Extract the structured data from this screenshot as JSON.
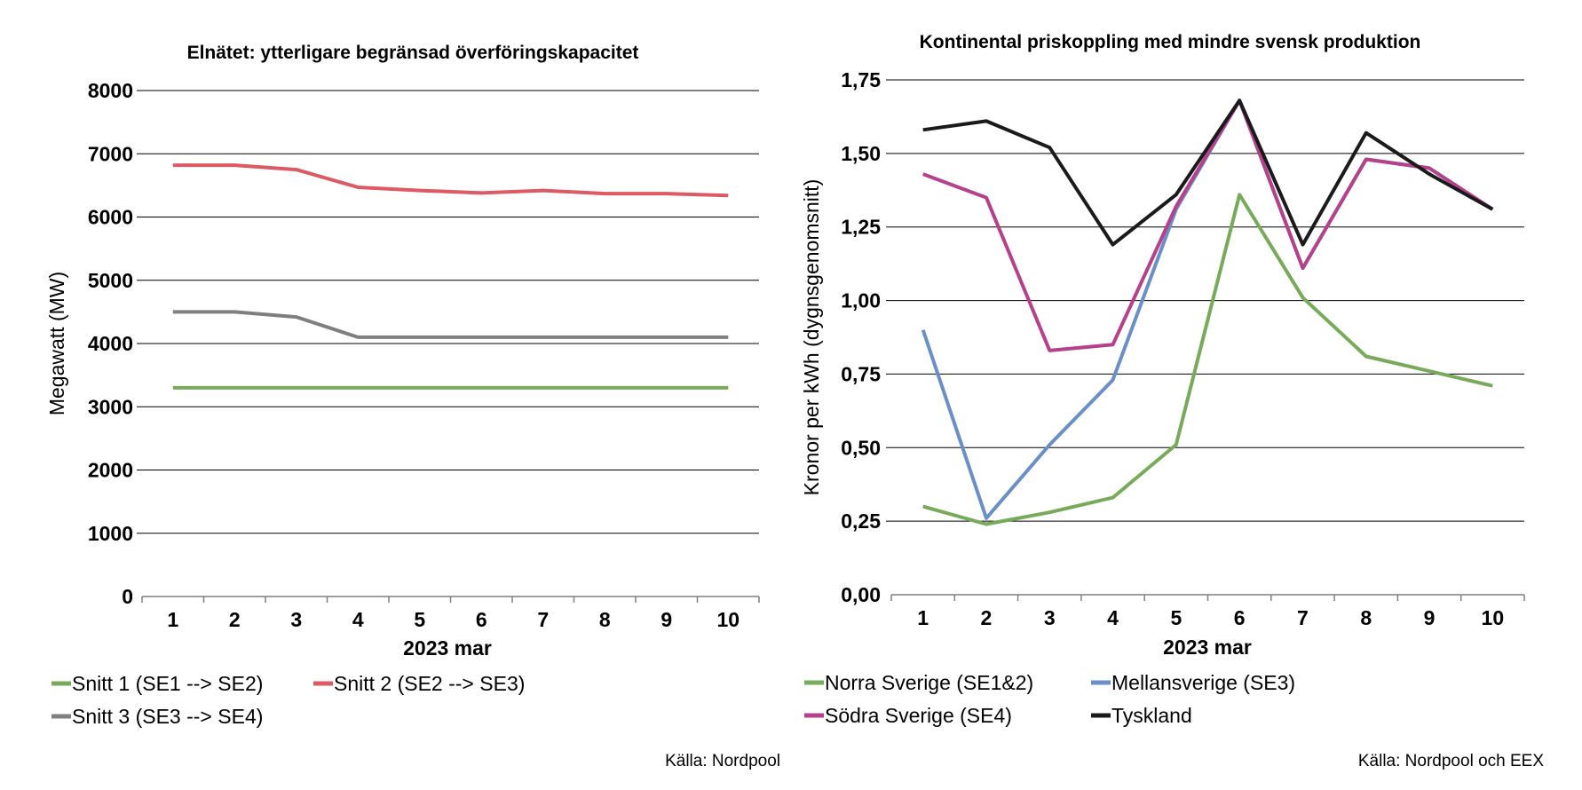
{
  "chart_data": [
    {
      "type": "line",
      "title": "Elnätet: ytterligare begränsad överföringskapacitet",
      "xlabel": "2023 mar",
      "ylabel": "Megawatt (MW)",
      "ylim": [
        0,
        8000
      ],
      "yticks": [
        "0",
        "1000",
        "2000",
        "3000",
        "4000",
        "5000",
        "6000",
        "7000",
        "8000"
      ],
      "x": [
        "1",
        "2",
        "3",
        "4",
        "5",
        "6",
        "7",
        "8",
        "9",
        "10"
      ],
      "grid": true,
      "legend_position": "bottom",
      "series": [
        {
          "name": "Snitt 1 (SE1 --> SE2)",
          "color": "#77ab59",
          "values": [
            3300,
            3300,
            3300,
            3300,
            3300,
            3300,
            3300,
            3300,
            3300,
            3300
          ]
        },
        {
          "name": "Snitt 2 (SE2 --> SE3)",
          "color": "#dd5a64",
          "values": [
            6820,
            6820,
            6750,
            6470,
            6420,
            6380,
            6420,
            6370,
            6370,
            6340
          ]
        },
        {
          "name": "Snitt 3 (SE3 --> SE4)",
          "color": "#7f7f7f",
          "values": [
            4500,
            4500,
            4420,
            4100,
            4100,
            4100,
            4100,
            4100,
            4100,
            4100
          ]
        }
      ],
      "source": "Källa: Nordpool"
    },
    {
      "type": "line",
      "title": "Kontinental priskoppling med mindre svensk produktion",
      "xlabel": "2023 mar",
      "ylabel": "Kronor per kWh (dygnsgenomsnitt)",
      "ylim": [
        0,
        1.75
      ],
      "yticks": [
        "0,00",
        "0,25",
        "0,50",
        "0,75",
        "1,00",
        "1,25",
        "1,50",
        "1,75"
      ],
      "x": [
        "1",
        "2",
        "3",
        "4",
        "5",
        "6",
        "7",
        "8",
        "9",
        "10"
      ],
      "grid": true,
      "legend_position": "bottom",
      "series": [
        {
          "name": "Norra Sverige (SE1&2)",
          "color": "#77ab59",
          "values": [
            0.3,
            0.24,
            0.28,
            0.33,
            0.51,
            1.36,
            1.01,
            0.81,
            0.76,
            0.71
          ]
        },
        {
          "name": "Mellansverige (SE3)",
          "color": "#6a8fc6",
          "values": [
            0.9,
            0.26,
            0.51,
            0.73,
            1.31,
            1.68,
            1.11,
            1.48,
            1.45,
            1.31
          ]
        },
        {
          "name": "Södra Sverige (SE4)",
          "color": "#b5408b",
          "values": [
            1.43,
            1.35,
            0.83,
            0.85,
            1.32,
            1.68,
            1.11,
            1.48,
            1.45,
            1.31
          ]
        },
        {
          "name": "Tyskland",
          "color": "#1a1a1a",
          "values": [
            1.58,
            1.61,
            1.52,
            1.19,
            1.36,
            1.68,
            1.19,
            1.57,
            1.43,
            1.31
          ]
        }
      ],
      "source": "Källa: Nordpool och EEX"
    }
  ]
}
